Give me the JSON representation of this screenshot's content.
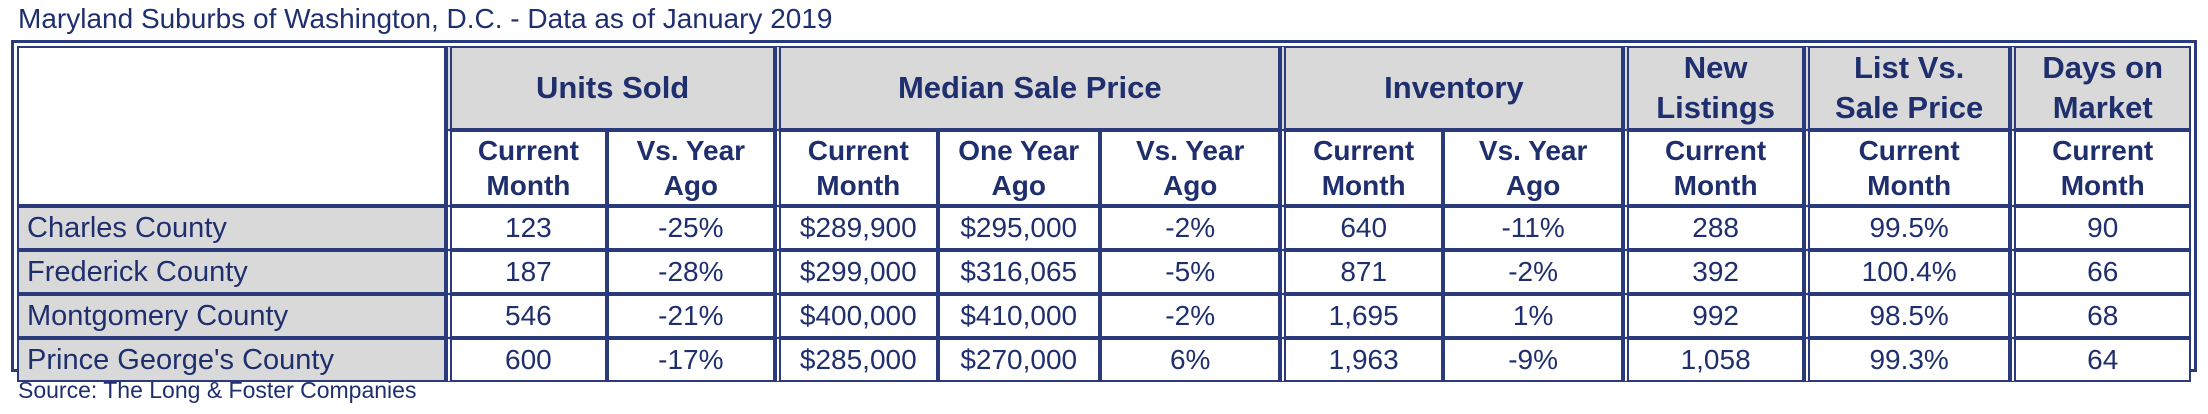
{
  "title": "Maryland Suburbs of Washington, D.C. - Data as of January 2019",
  "source": "Source: The Long & Foster Companies",
  "colors": {
    "text": "#1f2f6e",
    "border": "#2a3a7a",
    "header_bg": "#d9d9d9"
  },
  "groups": {
    "units_sold": "Units Sold",
    "median_sale_price": "Median Sale Price",
    "inventory": "Inventory",
    "new_listings": [
      "New",
      "Listings"
    ],
    "list_vs_sale": [
      "List Vs.",
      "Sale Price"
    ],
    "days_on_market": [
      "Days on",
      "Market"
    ]
  },
  "subheaders": {
    "current_month": [
      "Current",
      "Month"
    ],
    "vs_year_ago": [
      "Vs. Year",
      "Ago"
    ],
    "one_year_ago": [
      "One Year",
      "Ago"
    ]
  },
  "rows": [
    {
      "county": "Charles County",
      "values": [
        "123",
        "-25%",
        "$289,900",
        "$295,000",
        "-2%",
        "640",
        "-11%",
        "288",
        "99.5%",
        "90"
      ]
    },
    {
      "county": "Frederick County",
      "values": [
        "187",
        "-28%",
        "$299,000",
        "$316,065",
        "-5%",
        "871",
        "-2%",
        "392",
        "100.4%",
        "66"
      ]
    },
    {
      "county": "Montgomery County",
      "values": [
        "546",
        "-21%",
        "$400,000",
        "$410,000",
        "-2%",
        "1,695",
        "1%",
        "992",
        "98.5%",
        "68"
      ]
    },
    {
      "county": "Prince George's County",
      "values": [
        "600",
        "-17%",
        "$285,000",
        "$270,000",
        "6%",
        "1,963",
        "-9%",
        "1,058",
        "99.3%",
        "64"
      ]
    }
  ]
}
